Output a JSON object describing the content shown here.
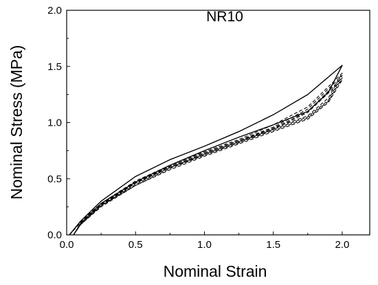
{
  "chart_data": {
    "type": "line",
    "title": "NR10",
    "xlabel": "Nominal Strain",
    "ylabel": "Nominal Stress (MPa)",
    "xlim": [
      0.0,
      2.2
    ],
    "ylim": [
      0.0,
      2.0
    ],
    "xticks": [
      "0.0",
      "0.5",
      "1.0",
      "1.5",
      "2.0"
    ],
    "yticks": [
      "0.0",
      "0.5",
      "1.0",
      "1.5",
      "2.0"
    ],
    "grid": false,
    "colors": {
      "line": "#000000"
    },
    "series": [
      {
        "style": "solid",
        "loading": [
          [
            0.02,
            0.0
          ],
          [
            0.1,
            0.12
          ],
          [
            0.25,
            0.3
          ],
          [
            0.5,
            0.52
          ],
          [
            0.75,
            0.67
          ],
          [
            1.0,
            0.79
          ],
          [
            1.25,
            0.92
          ],
          [
            1.5,
            1.07
          ],
          [
            1.75,
            1.25
          ],
          [
            2.0,
            1.51
          ]
        ],
        "unloading": [
          [
            2.0,
            1.51
          ],
          [
            1.9,
            1.27
          ],
          [
            1.75,
            1.1
          ],
          [
            1.5,
            0.98
          ],
          [
            1.25,
            0.87
          ],
          [
            1.0,
            0.75
          ],
          [
            0.75,
            0.62
          ],
          [
            0.5,
            0.47
          ],
          [
            0.25,
            0.28
          ],
          [
            0.1,
            0.1
          ],
          [
            0.05,
            0.0
          ]
        ]
      },
      {
        "style": "dashed",
        "loading": [
          [
            0.02,
            0.0
          ],
          [
            0.1,
            0.12
          ],
          [
            0.25,
            0.28
          ],
          [
            0.5,
            0.48
          ],
          [
            0.75,
            0.62
          ],
          [
            1.0,
            0.74
          ],
          [
            1.25,
            0.85
          ],
          [
            1.5,
            0.98
          ],
          [
            1.75,
            1.14
          ],
          [
            2.0,
            1.44
          ]
        ],
        "unloading": [
          [
            2.0,
            1.44
          ],
          [
            1.9,
            1.22
          ],
          [
            1.75,
            1.06
          ],
          [
            1.5,
            0.95
          ],
          [
            1.25,
            0.84
          ],
          [
            1.0,
            0.73
          ],
          [
            0.75,
            0.61
          ],
          [
            0.5,
            0.46
          ],
          [
            0.25,
            0.27
          ],
          [
            0.1,
            0.1
          ],
          [
            0.05,
            0.0
          ]
        ]
      },
      {
        "style": "dashed",
        "loading": [
          [
            0.02,
            0.0
          ],
          [
            0.1,
            0.11
          ],
          [
            0.25,
            0.27
          ],
          [
            0.5,
            0.47
          ],
          [
            0.75,
            0.61
          ],
          [
            1.0,
            0.73
          ],
          [
            1.25,
            0.84
          ],
          [
            1.5,
            0.96
          ],
          [
            1.75,
            1.12
          ],
          [
            2.0,
            1.42
          ]
        ],
        "unloading": [
          [
            2.0,
            1.42
          ],
          [
            1.9,
            1.2
          ],
          [
            1.75,
            1.05
          ],
          [
            1.5,
            0.94
          ],
          [
            1.25,
            0.83
          ],
          [
            1.0,
            0.72
          ],
          [
            0.75,
            0.6
          ],
          [
            0.5,
            0.45
          ],
          [
            0.25,
            0.26
          ],
          [
            0.1,
            0.09
          ],
          [
            0.05,
            0.0
          ]
        ]
      },
      {
        "style": "dashed",
        "loading": [
          [
            0.02,
            0.0
          ],
          [
            0.1,
            0.11
          ],
          [
            0.25,
            0.27
          ],
          [
            0.5,
            0.46
          ],
          [
            0.75,
            0.6
          ],
          [
            1.0,
            0.72
          ],
          [
            1.25,
            0.83
          ],
          [
            1.5,
            0.95
          ],
          [
            1.75,
            1.1
          ],
          [
            2.0,
            1.4
          ]
        ],
        "unloading": [
          [
            2.0,
            1.4
          ],
          [
            1.9,
            1.19
          ],
          [
            1.75,
            1.04
          ],
          [
            1.5,
            0.93
          ],
          [
            1.25,
            0.82
          ],
          [
            1.0,
            0.71
          ],
          [
            0.75,
            0.59
          ],
          [
            0.5,
            0.44
          ],
          [
            0.25,
            0.26
          ],
          [
            0.1,
            0.09
          ],
          [
            0.05,
            0.0
          ]
        ]
      },
      {
        "style": "dashed",
        "loading": [
          [
            0.02,
            0.0
          ],
          [
            0.1,
            0.11
          ],
          [
            0.25,
            0.26
          ],
          [
            0.5,
            0.46
          ],
          [
            0.75,
            0.6
          ],
          [
            1.0,
            0.71
          ],
          [
            1.25,
            0.82
          ],
          [
            1.5,
            0.94
          ],
          [
            1.75,
            1.09
          ],
          [
            2.0,
            1.38
          ]
        ],
        "unloading": [
          [
            2.0,
            1.38
          ],
          [
            1.9,
            1.18
          ],
          [
            1.75,
            1.03
          ],
          [
            1.5,
            0.92
          ],
          [
            1.25,
            0.81
          ],
          [
            1.0,
            0.7
          ],
          [
            0.75,
            0.58
          ],
          [
            0.5,
            0.44
          ],
          [
            0.25,
            0.25
          ],
          [
            0.1,
            0.09
          ],
          [
            0.05,
            0.0
          ]
        ]
      }
    ]
  }
}
